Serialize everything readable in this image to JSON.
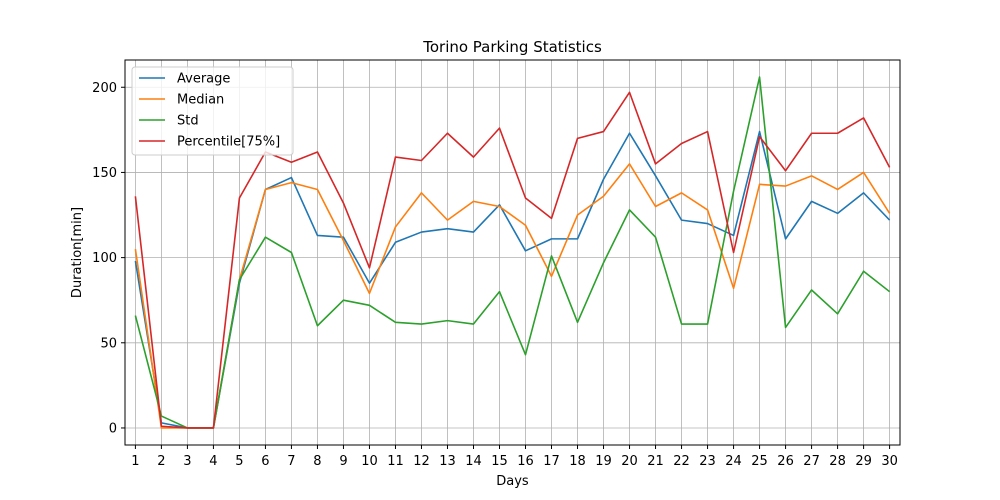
{
  "chart_data": {
    "type": "line",
    "title": "Torino Parking Statistics",
    "xlabel": "Days",
    "ylabel": "Duration[min]",
    "x": [
      1,
      2,
      3,
      4,
      5,
      6,
      7,
      8,
      9,
      10,
      11,
      12,
      13,
      14,
      15,
      16,
      17,
      18,
      19,
      20,
      21,
      22,
      23,
      24,
      25,
      26,
      27,
      28,
      29,
      30
    ],
    "xlim": [
      0.6,
      30.4
    ],
    "ylim": [
      -10,
      216
    ],
    "yticks": [
      0,
      50,
      100,
      150,
      200
    ],
    "grid": true,
    "legend_position": "top-left",
    "series": [
      {
        "name": "Average",
        "color": "#1f77b4",
        "values": [
          98,
          3,
          0,
          0,
          85,
          140,
          147,
          113,
          112,
          85,
          109,
          115,
          117,
          115,
          131,
          104,
          111,
          111,
          146,
          173,
          148,
          122,
          120,
          113,
          174,
          111,
          133,
          126,
          138,
          122
        ]
      },
      {
        "name": "Median",
        "color": "#ff7f0e",
        "values": [
          105,
          0,
          0,
          0,
          87,
          140,
          144,
          140,
          110,
          79,
          118,
          138,
          122,
          133,
          130,
          119,
          89,
          125,
          136,
          155,
          130,
          138,
          128,
          82,
          143,
          142,
          148,
          140,
          150,
          126
        ]
      },
      {
        "name": "Std",
        "color": "#2ca02c",
        "values": [
          66,
          7,
          0,
          0,
          87,
          112,
          103,
          60,
          75,
          72,
          62,
          61,
          63,
          61,
          80,
          43,
          101,
          62,
          97,
          128,
          112,
          61,
          61,
          139,
          206,
          59,
          81,
          67,
          92,
          80
        ]
      },
      {
        "name": "Percentile[75%]",
        "color": "#d62728",
        "values": [
          136,
          1,
          0,
          0,
          135,
          162,
          156,
          162,
          132,
          94,
          159,
          157,
          173,
          159,
          176,
          135,
          123,
          170,
          174,
          197,
          155,
          167,
          174,
          103,
          171,
          151,
          173,
          173,
          182,
          153
        ]
      }
    ]
  }
}
